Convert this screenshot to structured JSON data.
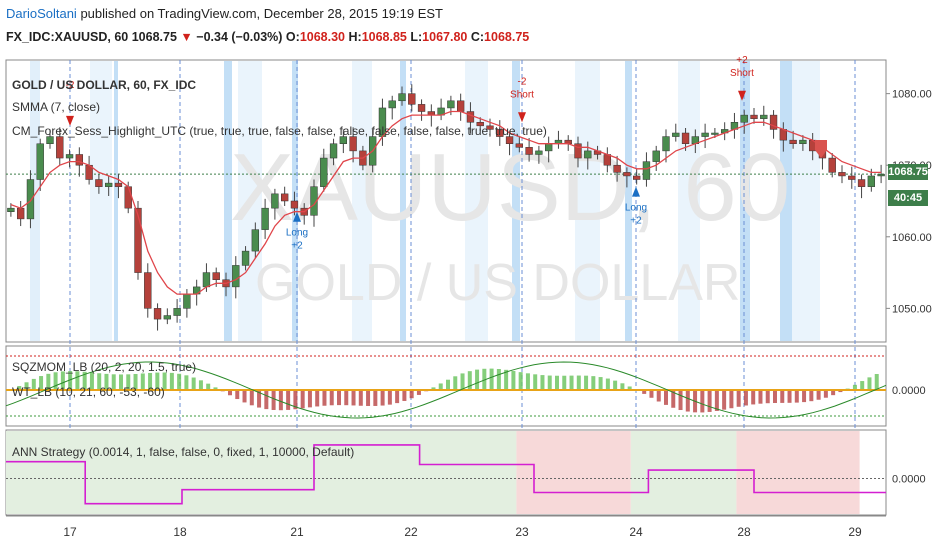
{
  "header": {
    "author": "DarioSoltani",
    "published_text": "published on TradingView.com, December 28, 2015 19:19 EST",
    "symbol_line": "FX_IDC:XAUUSD, 60",
    "last": "1068.75",
    "change": "−0.34 (−0.03%)",
    "o_label": "O:",
    "o": "1068.30",
    "h_label": "H:",
    "h": "1068.85",
    "l_label": "L:",
    "l": "1067.80",
    "c_label": "C:",
    "c": "1068.75"
  },
  "watermark": {
    "line1": "XAUUSD, 60",
    "line2": "GOLD / US DOLLAR"
  },
  "main_pane": {
    "title": "GOLD / US DOLLAR, 60, FX_IDC",
    "indicator1": "SMMA (7, close)",
    "indicator2": "CM_Forex_Sess_Highlight_UTC (true, true, true, false, false, false, false, false, false, true, true, true)",
    "price_axis": [
      "1080.00",
      "1070.00",
      "1060.00",
      "1050.00"
    ],
    "last_price_tag": "1068.75",
    "countdown_tag": "40:45"
  },
  "osc_pane": {
    "label1": "SQZMOM_LB (20, 2, 20, 1.5, true)",
    "label2": "WT_LB (10, 21, 60, -53, -60)",
    "axis_label": "0.0000"
  },
  "strategy_pane": {
    "label": "ANN Strategy (0.0014, 1, false, false, 0, fixed, 1, 10000, Default)",
    "axis_label": "0.0000"
  },
  "time_axis": [
    "17",
    "18",
    "21",
    "22",
    "23",
    "24",
    "28",
    "29"
  ],
  "signals": [
    {
      "type": "short",
      "text": "-2"
    },
    {
      "type": "long",
      "text": "Long",
      "sub": "+2"
    },
    {
      "type": "short",
      "text": "-2",
      "sub": "Short"
    },
    {
      "type": "long",
      "text": "Long",
      "sub": "+2"
    },
    {
      "type": "short",
      "text": "+2",
      "sub": "Short"
    }
  ],
  "colors": {
    "up_candle": "#4a8c4e",
    "down_candle": "#b5413b",
    "smma": "#e0454a",
    "session": "#bcdcf5",
    "session_dark": "#7dbbea",
    "strategy_line": "#d41fd1",
    "green_zone": "#e3efe0",
    "red_zone": "#f7d9d9",
    "price_tag": "#3d7e4a"
  },
  "chart_data": {
    "type": "candlestick",
    "title": "GOLD / US DOLLAR, 60, FX_IDC",
    "xlabel": "",
    "ylabel": "",
    "ylim": [
      1046,
      1084
    ],
    "x_ticks": [
      "17",
      "18",
      "21",
      "22",
      "23",
      "24",
      "28",
      "29"
    ],
    "close_path": [
      1064,
      1062.5,
      1068,
      1073,
      1074,
      1071,
      1071.5,
      1070,
      1068,
      1067,
      1067.5,
      1067,
      1064,
      1055,
      1050,
      1048.5,
      1049,
      1050,
      1052,
      1053,
      1055,
      1054,
      1053,
      1056,
      1058,
      1061,
      1064,
      1066,
      1065,
      1064,
      1063,
      1067,
      1071,
      1073,
      1074,
      1072,
      1070,
      1074,
      1078,
      1079,
      1080,
      1078.5,
      1077.5,
      1077,
      1078,
      1079,
      1077.5,
      1076,
      1075.5,
      1075,
      1074,
      1073,
      1072.5,
      1071.5,
      1072,
      1073,
      1073.5,
      1073,
      1071,
      1072,
      1071.5,
      1070,
      1069,
      1068.5,
      1068,
      1070.5,
      1072,
      1074,
      1074.5,
      1073,
      1074,
      1074.5,
      1074.5,
      1075,
      1076,
      1077,
      1076.5,
      1077,
      1075,
      1073.5,
      1073,
      1073.5,
      1072,
      1071,
      1069,
      1068.5,
      1068,
      1067,
      1068.5,
      1068.75
    ],
    "smma_path": [
      1064.5,
      1064,
      1065,
      1067,
      1069,
      1070,
      1070.5,
      1070.5,
      1070,
      1069,
      1068.5,
      1068,
      1067,
      1063,
      1058,
      1055,
      1053,
      1052,
      1052,
      1052,
      1053,
      1053.5,
      1053.5,
      1054,
      1055,
      1057,
      1059,
      1061.5,
      1063,
      1063.5,
      1063.5,
      1064.5,
      1066.5,
      1068.5,
      1070.5,
      1071,
      1071,
      1072,
      1074,
      1075.5,
      1076.5,
      1077,
      1077,
      1077,
      1077,
      1077.5,
      1077.5,
      1077,
      1076.5,
      1076,
      1075.5,
      1074.5,
      1074,
      1073.5,
      1073,
      1073,
      1073,
      1073,
      1072.5,
      1072.5,
      1072,
      1071.5,
      1071,
      1070,
      1069.5,
      1069.5,
      1070,
      1071,
      1072,
      1072.5,
      1073,
      1073.5,
      1074,
      1074.5,
      1075,
      1075.5,
      1076,
      1076,
      1075.5,
      1075,
      1074.5,
      1074,
      1073.5,
      1072.5,
      1071.5,
      1070.5,
      1070,
      1069.5,
      1069,
      1069
    ],
    "strategy_line": [
      {
        "x0": 0,
        "x1": 0.09,
        "v": 0.6
      },
      {
        "x0": 0.09,
        "x1": 0.2,
        "v": -0.9
      },
      {
        "x0": 0.2,
        "x1": 0.35,
        "v": -0.4
      },
      {
        "x0": 0.35,
        "x1": 0.47,
        "v": 1.2
      },
      {
        "x0": 0.47,
        "x1": 0.6,
        "v": 0.5
      },
      {
        "x0": 0.6,
        "x1": 0.73,
        "v": -0.5
      },
      {
        "x0": 0.73,
        "x1": 0.85,
        "v": 0.3
      },
      {
        "x0": 0.85,
        "x1": 1,
        "v": -0.5
      }
    ]
  }
}
